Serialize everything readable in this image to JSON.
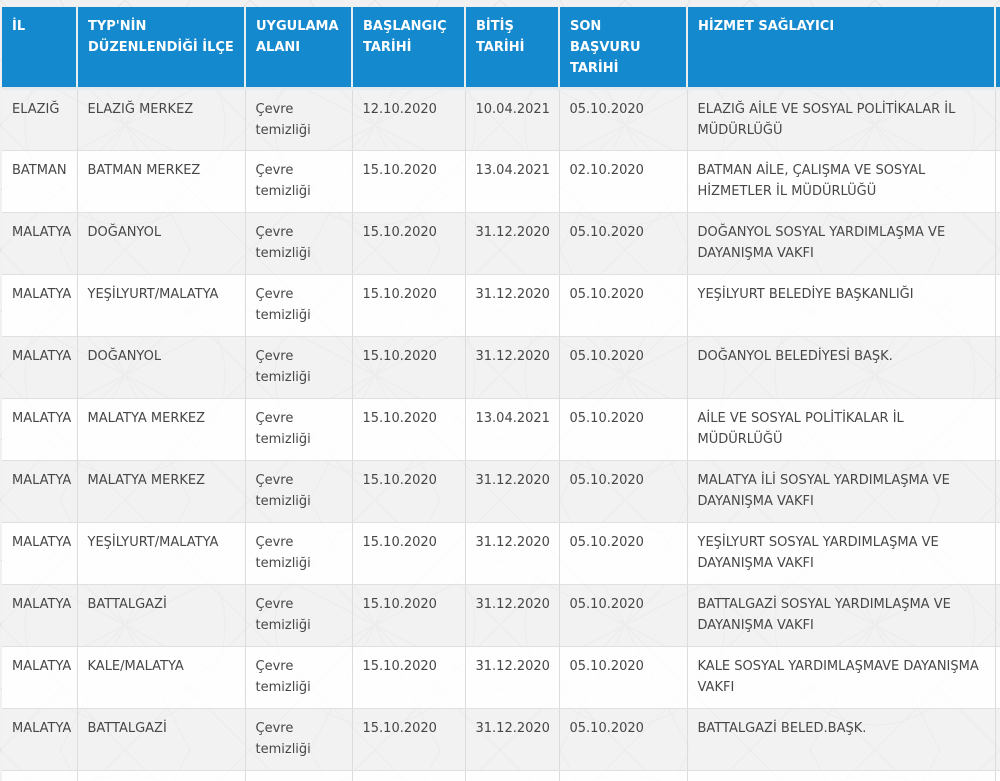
{
  "colors": {
    "header_bg": "#1489ce",
    "header_text": "#ffffff",
    "body_text": "#474747",
    "row_alt_bg": "#f2f2f2",
    "row_bg": "#ffffff",
    "grid_border": "#dcdcdc",
    "page_bg": "#f1f1f1",
    "watermark_line": "#e4e4e4"
  },
  "table": {
    "columns": [
      {
        "key": "il",
        "label": "İL"
      },
      {
        "key": "ilce",
        "label": "TYP'NİN DÜZENLENDİĞİ İLÇE"
      },
      {
        "key": "uygulama-alani",
        "label": "UYGULAMA ALANI"
      },
      {
        "key": "baslangic-tarihi",
        "label": "BAŞLANGIÇ TARİHİ"
      },
      {
        "key": "bitis-tarihi",
        "label": "BİTİŞ TARİHİ"
      },
      {
        "key": "son-basvuru-tarihi",
        "label": "SON BAŞVURU TARİHİ"
      },
      {
        "key": "hizmet-saglayici",
        "label": "HİZMET SAĞLAYICI"
      },
      {
        "key": "clipped-column",
        "label": ""
      }
    ],
    "rows": [
      {
        "cells": [
          "ELAZIĞ",
          "ELAZIĞ MERKEZ",
          "Çevre temizliği",
          "12.10.2020",
          "10.04.2021",
          "05.10.2020",
          "ELAZIĞ AİLE VE SOSYAL POLİTİKALAR İL MÜDÜRLÜĞÜ",
          ""
        ]
      },
      {
        "cells": [
          "BATMAN",
          "BATMAN MERKEZ",
          "Çevre temizliği",
          "15.10.2020",
          "13.04.2021",
          "02.10.2020",
          "BATMAN AİLE, ÇALIŞMA VE SOSYAL HİZMETLER İL MÜDÜRLÜĞÜ",
          ""
        ]
      },
      {
        "cells": [
          "MALATYA",
          "DOĞANYOL",
          "Çevre temizliği",
          "15.10.2020",
          "31.12.2020",
          "05.10.2020",
          "DOĞANYOL SOSYAL YARDIMLAŞMA VE DAYANIŞMA VAKFI",
          ""
        ]
      },
      {
        "cells": [
          "MALATYA",
          "YEŞİLYURT/MALATYA",
          "Çevre temizliği",
          "15.10.2020",
          "31.12.2020",
          "05.10.2020",
          "YEŞİLYURT BELEDİYE BAŞKANLIĞI",
          ""
        ]
      },
      {
        "cells": [
          "MALATYA",
          "DOĞANYOL",
          "Çevre temizliği",
          "15.10.2020",
          "31.12.2020",
          "05.10.2020",
          "DOĞANYOL BELEDİYESİ BAŞK.",
          ""
        ]
      },
      {
        "cells": [
          "MALATYA",
          "MALATYA MERKEZ",
          "Çevre temizliği",
          "15.10.2020",
          "13.04.2021",
          "05.10.2020",
          "AİLE VE SOSYAL POLİTİKALAR İL MÜDÜRLÜĞÜ",
          ""
        ]
      },
      {
        "cells": [
          "MALATYA",
          "MALATYA MERKEZ",
          "Çevre temizliği",
          "15.10.2020",
          "31.12.2020",
          "05.10.2020",
          "MALATYA İLİ SOSYAL YARDIMLAŞMA VE DAYANIŞMA VAKFI",
          ""
        ]
      },
      {
        "cells": [
          "MALATYA",
          "YEŞİLYURT/MALATYA",
          "Çevre temizliği",
          "15.10.2020",
          "31.12.2020",
          "05.10.2020",
          "YEŞİLYURT SOSYAL YARDIMLAŞMA VE DAYANIŞMA VAKFI",
          ""
        ]
      },
      {
        "cells": [
          "MALATYA",
          "BATTALGAZİ",
          "Çevre temizliği",
          "15.10.2020",
          "31.12.2020",
          "05.10.2020",
          "BATTALGAZİ SOSYAL YARDIMLAŞMA VE DAYANIŞMA VAKFI",
          ""
        ]
      },
      {
        "cells": [
          "MALATYA",
          "KALE/MALATYA",
          "Çevre temizliği",
          "15.10.2020",
          "31.12.2020",
          "05.10.2020",
          "KALE SOSYAL YARDIMLAŞMAVE DAYANIŞMA VAKFI",
          ""
        ]
      },
      {
        "cells": [
          "MALATYA",
          "BATTALGAZİ",
          "Çevre temizliği",
          "15.10.2020",
          "31.12.2020",
          "05.10.2020",
          "BATTALGAZİ BELED.BAŞK.",
          ""
        ]
      },
      {
        "cells": [
          "",
          "",
          "",
          "",
          "",
          "",
          "",
          ""
        ]
      }
    ]
  }
}
